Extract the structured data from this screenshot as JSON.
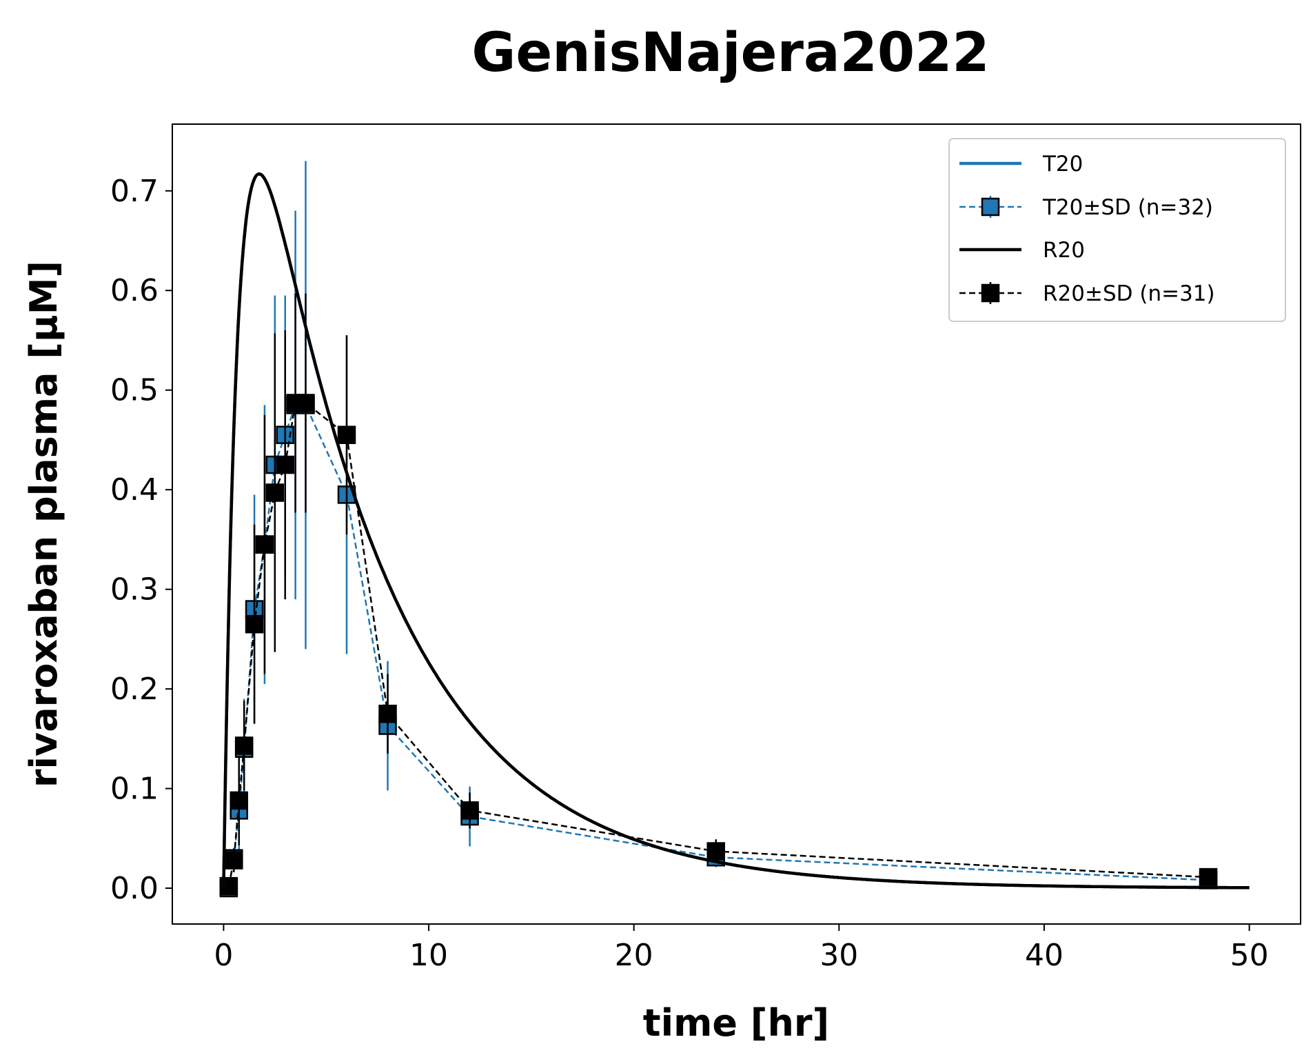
{
  "chart_data": {
    "type": "line",
    "title": "GenisNajera2022",
    "xlabel": "time [hr]",
    "ylabel": "rivaroxaban plasma [µM]",
    "xlim": [
      -2.5,
      52.5
    ],
    "ylim": [
      -0.036,
      0.767
    ],
    "xticks": [
      0,
      10,
      20,
      30,
      40,
      50
    ],
    "yticks": [
      0.0,
      0.1,
      0.2,
      0.3,
      0.4,
      0.5,
      0.6,
      0.7
    ],
    "grid": false,
    "legend_position": "top-right",
    "colors": {
      "T20": "#1f77b4",
      "R20": "#000000"
    },
    "legend": [
      "T20",
      "T20±SD (n=32)",
      "R20",
      "R20±SD (n=31)"
    ],
    "series": [
      {
        "name": "T20",
        "kind": "model",
        "color": "#1f77b4",
        "x": [
          0,
          0.5,
          1,
          1.5,
          2,
          2.25,
          2.5,
          3,
          4,
          5,
          6,
          8,
          10,
          12,
          16,
          20,
          24,
          30,
          40,
          50
        ],
        "y": [
          0,
          0.45,
          0.66,
          0.71,
          0.716,
          0.717,
          0.712,
          0.69,
          0.6,
          0.5,
          0.42,
          0.3,
          0.213,
          0.15,
          0.082,
          0.045,
          0.024,
          0.0098,
          0.0025,
          0.0006
        ]
      },
      {
        "name": "T20±SD (n=32)",
        "kind": "data",
        "color": "#1f77b4",
        "x": [
          0.25,
          0.5,
          0.75,
          1,
          1.5,
          2,
          2.5,
          3,
          3.5,
          4,
          6,
          8,
          12,
          24,
          48
        ],
        "y": [
          0.0,
          0.03,
          0.078,
          0.14,
          0.28,
          0.345,
          0.425,
          0.455,
          0.485,
          0.485,
          0.395,
          0.163,
          0.072,
          0.031,
          0.008
        ],
        "sd": [
          0.0,
          0.01,
          0.04,
          0.05,
          0.115,
          0.14,
          0.17,
          0.14,
          0.195,
          0.245,
          0.16,
          0.065,
          0.03,
          0.01,
          0.004
        ]
      },
      {
        "name": "R20",
        "kind": "model",
        "color": "#000000",
        "x": [
          0,
          0.5,
          1,
          1.5,
          2,
          2.25,
          2.5,
          3,
          4,
          5,
          6,
          8,
          10,
          12,
          16,
          20,
          24,
          30,
          40,
          50
        ],
        "y": [
          0,
          0.45,
          0.66,
          0.71,
          0.716,
          0.717,
          0.712,
          0.69,
          0.6,
          0.5,
          0.42,
          0.3,
          0.213,
          0.15,
          0.082,
          0.045,
          0.024,
          0.0098,
          0.0025,
          0.0006
        ]
      },
      {
        "name": "R20±SD (n=31)",
        "kind": "data",
        "color": "#000000",
        "x": [
          0.25,
          0.5,
          0.75,
          1,
          1.5,
          2,
          2.5,
          3,
          3.5,
          4,
          6,
          8,
          12,
          24,
          48
        ],
        "y": [
          0.002,
          0.028,
          0.088,
          0.143,
          0.265,
          0.345,
          0.397,
          0.425,
          0.487,
          0.487,
          0.455,
          0.175,
          0.078,
          0.037,
          0.011
        ],
        "sd": [
          0.001,
          0.012,
          0.045,
          0.045,
          0.1,
          0.13,
          0.16,
          0.135,
          0.11,
          0.11,
          0.1,
          0.04,
          0.018,
          0.012,
          0.004
        ]
      }
    ]
  }
}
